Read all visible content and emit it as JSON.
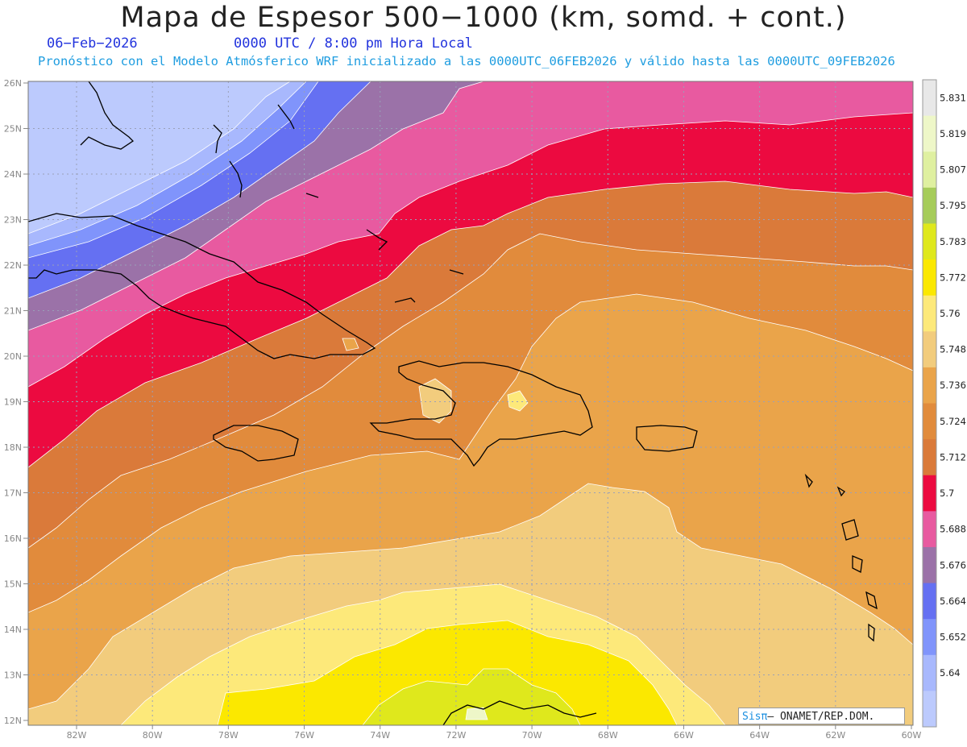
{
  "header": {
    "title": "Mapa de Espesor 500−1000 (km, somd. + cont.)",
    "date": "06−Feb−2026",
    "time": "0000 UTC / 8:00 pm Hora Local",
    "subtitle": "Pronóstico con el Modelo Atmósferico WRF inicializado a las 0000UTC_06FEB2026 y válido hasta las  0000UTC_09FEB2026"
  },
  "map": {
    "lat_labels": [
      "26N",
      "25N",
      "24N",
      "23N",
      "22N",
      "21N",
      "20N",
      "19N",
      "18N",
      "17N",
      "16N",
      "15N",
      "14N",
      "13N",
      "12N"
    ],
    "lon_labels": [
      "82W",
      "80W",
      "78W",
      "76W",
      "74W",
      "72W",
      "70W",
      "68W",
      "66W",
      "64W",
      "62W",
      "60W"
    ]
  },
  "colorbar": {
    "levels": [
      "5.831",
      "5.819",
      "5.807",
      "5.795",
      "5.783",
      "5.772",
      "5.76",
      "5.748",
      "5.736",
      "5.724",
      "5.712",
      "5.7",
      "5.688",
      "5.676",
      "5.664",
      "5.652",
      "5.64"
    ],
    "colors": [
      "#e8e8e8",
      "#eef7c8",
      "#dff0a0",
      "#a6cc5a",
      "#dfe81c",
      "#fbe800",
      "#fde97a",
      "#f2cc7d",
      "#eaa44a",
      "#e18b3c",
      "#da7a3a",
      "#ec0a40",
      "#e85aa0",
      "#9b72a8",
      "#6570f2",
      "#8094fb",
      "#a8b8fd",
      "#bccafd"
    ]
  },
  "credit": {
    "sis": "Sisπ",
    "text": "– ONAMET/REP.DOM."
  }
}
